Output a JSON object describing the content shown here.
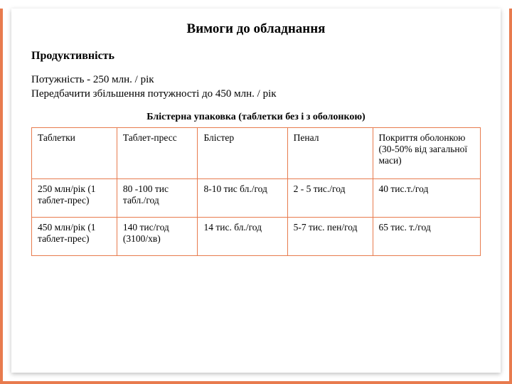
{
  "colors": {
    "accent": "#e87b4e",
    "text": "#000000",
    "background": "#ffffff"
  },
  "title": "Вимоги до обладнання",
  "subtitle": "Продуктивність",
  "body_line1": "Потужність - 250 млн. / рік",
  "body_line2": "Передбачити збільшення потужності до 450 млн. / рік",
  "table": {
    "caption": "Блістерна упаковка (таблетки без і з оболонкою)",
    "columns": [
      "Таблетки",
      "Таблет-пресс",
      "Блістер",
      "Пенал",
      "Покриття оболонкою (30-50% від загальної маси)"
    ],
    "rows": [
      [
        "250 млн/рік (1 таблет-прес)",
        "80 -100 тис табл./год",
        "8-10 тис бл./год",
        "2 - 5 тис./год",
        "40 тис.т./год"
      ],
      [
        "450 млн/рік (1 таблет-прес)",
        "140 тис/год (3100/хв)",
        "14 тис. бл./год",
        "5-7 тис. пен/год",
        "65 тис. т./год"
      ]
    ],
    "col_widths_pct": [
      19,
      18,
      20,
      19,
      24
    ]
  }
}
